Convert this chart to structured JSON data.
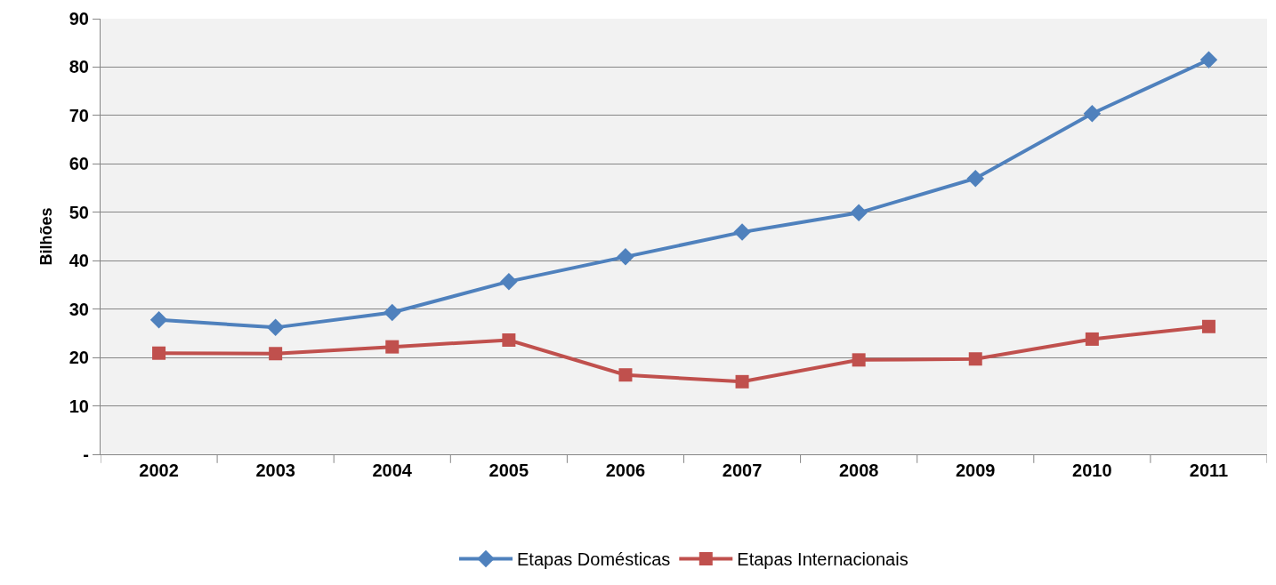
{
  "chart_data": {
    "type": "line",
    "ylabel": "Bilhões",
    "categories": [
      "2002",
      "2003",
      "2004",
      "2005",
      "2006",
      "2007",
      "2008",
      "2009",
      "2010",
      "2011"
    ],
    "series": [
      {
        "name": "Etapas Domésticas",
        "color": "#4f81bd",
        "marker": "diamond",
        "values": [
          27.8,
          26.2,
          29.3,
          35.7,
          40.8,
          45.9,
          49.9,
          57.0,
          70.4,
          81.5
        ]
      },
      {
        "name": "Etapas Internacionais",
        "color": "#c0504d",
        "marker": "square",
        "values": [
          20.9,
          20.8,
          22.2,
          23.6,
          16.4,
          15.0,
          19.5,
          19.7,
          23.8,
          26.4
        ]
      }
    ],
    "ylim": [
      0,
      90
    ],
    "yticks": [
      {
        "value": 0,
        "label": "-"
      },
      10,
      20,
      30,
      40,
      50,
      60,
      70,
      80,
      90
    ],
    "grid": "y",
    "legend": "bottom",
    "line_style": "solid"
  }
}
